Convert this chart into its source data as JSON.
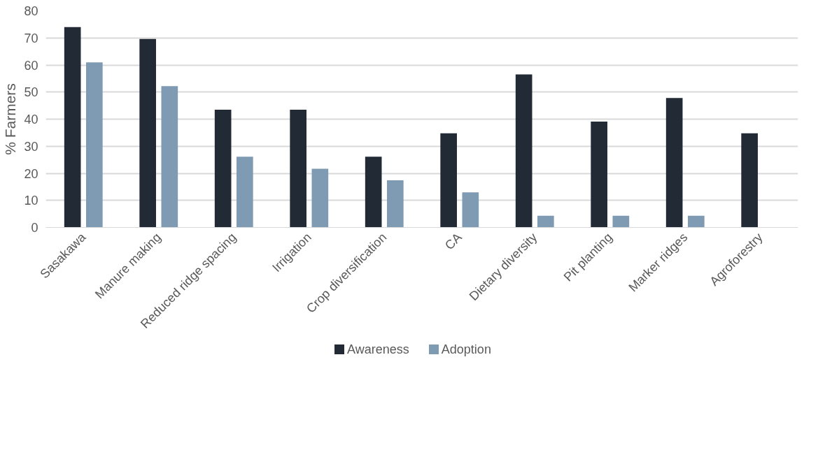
{
  "chart_data": {
    "type": "bar",
    "ylabel": "% Farmers",
    "categories": [
      "Sasakawa",
      "Manure making",
      "Reduced ridge spacing",
      "Irrigation",
      "Crop diversification",
      "CA",
      "Dietary diversity",
      "Pit planting",
      "Marker ridges",
      "Agroforestry"
    ],
    "series": [
      {
        "name": "Awareness",
        "color": "#212a35",
        "values": [
          74,
          69.6,
          43.5,
          43.5,
          26.1,
          34.8,
          56.5,
          39.1,
          47.8,
          34.8
        ]
      },
      {
        "name": "Adoption",
        "color": "#7f9bb3",
        "values": [
          61,
          52.2,
          26.1,
          21.7,
          17.4,
          13,
          4.3,
          4.3,
          4.3,
          null
        ]
      }
    ],
    "ylim": [
      0,
      80
    ],
    "yticks": [
      0,
      10,
      20,
      30,
      40,
      50,
      60,
      70,
      80
    ],
    "grid": "y",
    "legend": "bottom"
  }
}
